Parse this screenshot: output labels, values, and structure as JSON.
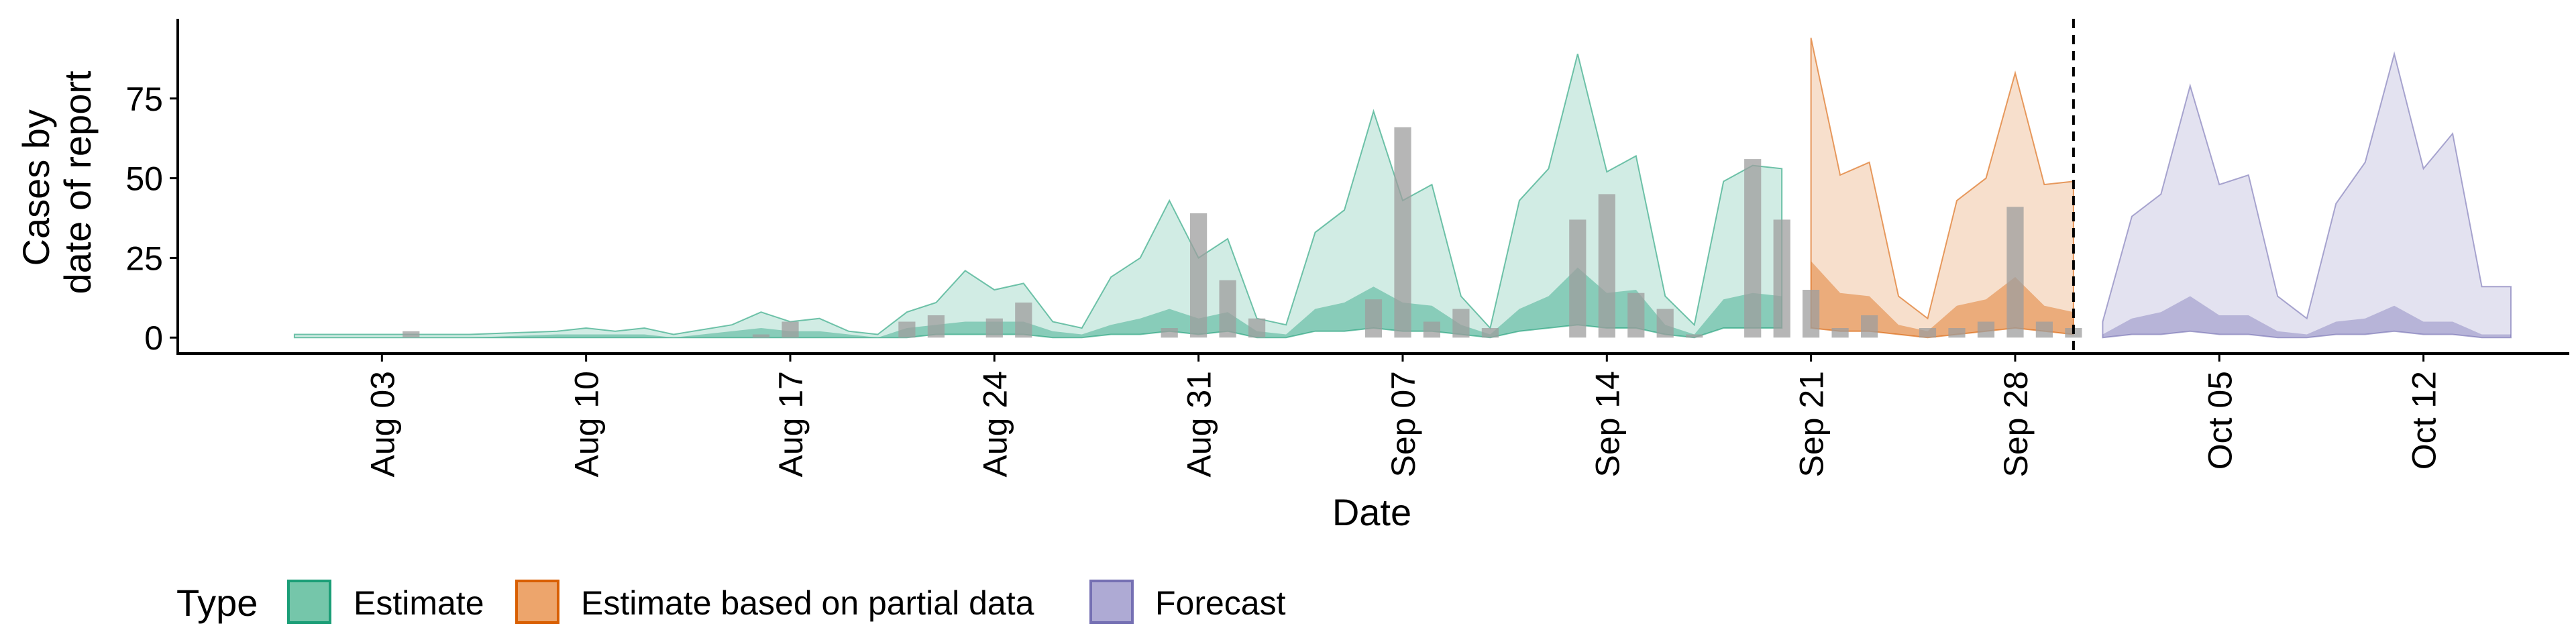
{
  "chart_data": {
    "type": "area",
    "xlabel": "Date",
    "ylabel_lines": [
      "Cases by",
      "date of report"
    ],
    "ylim": [
      -5,
      100
    ],
    "yticks": [
      0,
      25,
      50,
      75
    ],
    "ytick_labels": [
      "0",
      "25",
      "50",
      "75"
    ],
    "xlim_dates": [
      "2020-07-27",
      "2020-10-17"
    ],
    "xticks": [
      "2020-08-03",
      "2020-08-10",
      "2020-08-17",
      "2020-08-24",
      "2020-08-31",
      "2020-09-07",
      "2020-09-14",
      "2020-09-21",
      "2020-09-28",
      "2020-10-05",
      "2020-10-12"
    ],
    "xtick_labels": [
      "Aug 03",
      "Aug 10",
      "Aug 17",
      "Aug 24",
      "Aug 31",
      "Sep 07",
      "Sep 14",
      "Sep 21",
      "Sep 28",
      "Oct 05",
      "Oct 12"
    ],
    "forecast_start_line": "2020-09-30",
    "legend": {
      "title": "Type",
      "position": "bottom",
      "entries": [
        {
          "label": "Estimate",
          "fill": "#75c6aa",
          "border": "#1b9e77"
        },
        {
          "label": "Estimate based on partial data",
          "fill": "#eda56c",
          "border": "#d95f02"
        },
        {
          "label": "Forecast",
          "fill": "#aeaad4",
          "border": "#7570b3"
        }
      ]
    },
    "bar_color": "#9e9e9e",
    "bars": {
      "dates": [
        "2020-08-04",
        "2020-08-16",
        "2020-08-17",
        "2020-08-21",
        "2020-08-22",
        "2020-08-24",
        "2020-08-25",
        "2020-08-30",
        "2020-08-31",
        "2020-09-01",
        "2020-09-02",
        "2020-09-06",
        "2020-09-07",
        "2020-09-08",
        "2020-09-09",
        "2020-09-10",
        "2020-09-13",
        "2020-09-14",
        "2020-09-15",
        "2020-09-16",
        "2020-09-17",
        "2020-09-19",
        "2020-09-20",
        "2020-09-21",
        "2020-09-22",
        "2020-09-23",
        "2020-09-25",
        "2020-09-26",
        "2020-09-27",
        "2020-09-28",
        "2020-09-29",
        "2020-09-30"
      ],
      "values": [
        2,
        1,
        5,
        5,
        7,
        6,
        11,
        3,
        39,
        18,
        6,
        12,
        66,
        5,
        9,
        3,
        37,
        45,
        14,
        9,
        1,
        56,
        37,
        15,
        3,
        7,
        3,
        3,
        5,
        41,
        5,
        3
      ]
    },
    "series": [
      {
        "name": "Estimate",
        "dates": [
          "2020-07-31",
          "2020-08-03",
          "2020-08-06",
          "2020-08-09",
          "2020-08-10",
          "2020-08-11",
          "2020-08-12",
          "2020-08-13",
          "2020-08-15",
          "2020-08-16",
          "2020-08-17",
          "2020-08-18",
          "2020-08-19",
          "2020-08-20",
          "2020-08-21",
          "2020-08-22",
          "2020-08-23",
          "2020-08-24",
          "2020-08-25",
          "2020-08-26",
          "2020-08-27",
          "2020-08-28",
          "2020-08-29",
          "2020-08-30",
          "2020-08-31",
          "2020-09-01",
          "2020-09-02",
          "2020-09-03",
          "2020-09-04",
          "2020-09-05",
          "2020-09-06",
          "2020-09-07",
          "2020-09-08",
          "2020-09-09",
          "2020-09-10",
          "2020-09-11",
          "2020-09-12",
          "2020-09-13",
          "2020-09-14",
          "2020-09-15",
          "2020-09-16",
          "2020-09-17",
          "2020-09-18",
          "2020-09-19",
          "2020-09-20"
        ],
        "upper": [
          1,
          1,
          1,
          2,
          3,
          2,
          3,
          1,
          4,
          8,
          5,
          6,
          2,
          1,
          8,
          11,
          21,
          15,
          17,
          5,
          3,
          19,
          25,
          43,
          25,
          31,
          6,
          4,
          33,
          40,
          71,
          43,
          48,
          13,
          3,
          43,
          53,
          89,
          52,
          57,
          13,
          4,
          49,
          54,
          53
        ],
        "mid": [
          0,
          0,
          0,
          1,
          1,
          1,
          1,
          0,
          2,
          3,
          2,
          2,
          1,
          0,
          3,
          4,
          5,
          5,
          5,
          2,
          1,
          4,
          6,
          9,
          6,
          8,
          2,
          1,
          9,
          11,
          16,
          11,
          10,
          4,
          1,
          9,
          13,
          22,
          14,
          15,
          4,
          1,
          12,
          14,
          13
        ],
        "lower": [
          0,
          0,
          0,
          0,
          0,
          0,
          0,
          0,
          0,
          0,
          0,
          0,
          0,
          0,
          0,
          1,
          1,
          1,
          1,
          0,
          0,
          1,
          1,
          2,
          1,
          2,
          0,
          0,
          2,
          2,
          3,
          2,
          2,
          1,
          0,
          2,
          3,
          4,
          3,
          3,
          1,
          0,
          3,
          3,
          3
        ]
      },
      {
        "name": "Estimate based on partial data",
        "dates": [
          "2020-09-21",
          "2020-09-22",
          "2020-09-23",
          "2020-09-24",
          "2020-09-25",
          "2020-09-26",
          "2020-09-27",
          "2020-09-28",
          "2020-09-29",
          "2020-09-30"
        ],
        "upper": [
          94,
          51,
          55,
          13,
          6,
          43,
          50,
          83,
          48,
          49
        ],
        "mid": [
          24,
          14,
          13,
          4,
          2,
          10,
          12,
          19,
          10,
          8
        ],
        "lower": [
          3,
          2,
          2,
          1,
          0,
          1,
          2,
          3,
          2,
          1
        ]
      },
      {
        "name": "Forecast",
        "dates": [
          "2020-10-01",
          "2020-10-02",
          "2020-10-03",
          "2020-10-04",
          "2020-10-05",
          "2020-10-06",
          "2020-10-07",
          "2020-10-08",
          "2020-10-09",
          "2020-10-10",
          "2020-10-11",
          "2020-10-12",
          "2020-10-13",
          "2020-10-14",
          "2020-10-15"
        ],
        "upper": [
          5,
          38,
          45,
          79,
          48,
          51,
          13,
          6,
          42,
          55,
          89,
          53,
          64,
          16,
          16
        ],
        "mid": [
          1,
          6,
          8,
          13,
          7,
          7,
          2,
          1,
          5,
          6,
          10,
          5,
          5,
          1,
          1
        ],
        "lower": [
          0,
          1,
          1,
          2,
          1,
          1,
          0,
          0,
          1,
          1,
          2,
          1,
          1,
          0,
          0
        ]
      }
    ]
  }
}
